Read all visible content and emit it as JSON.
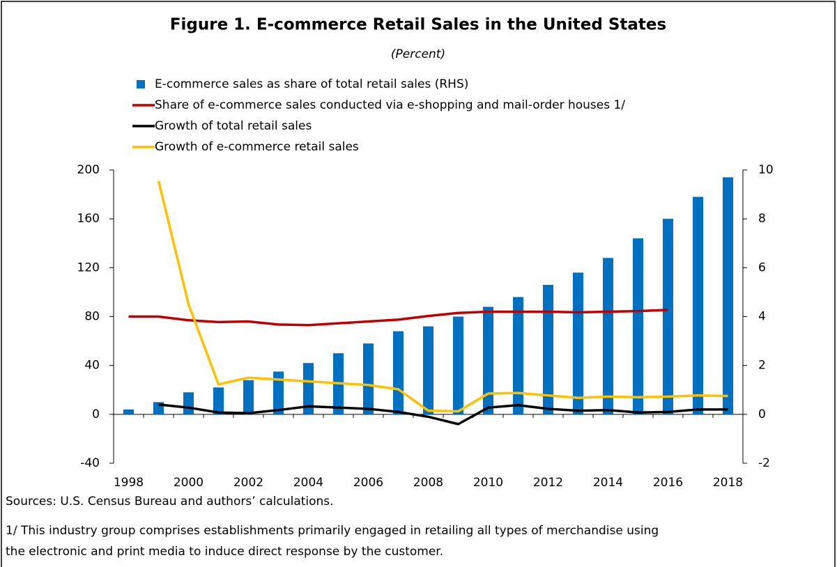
{
  "chart_data": {
    "type": "bar_line",
    "title": "Figure 1. E-commerce Retail Sales in the United States",
    "subtitle": "(Percent)",
    "categories": [
      "1998",
      null,
      "2000",
      null,
      "2002",
      null,
      "2004",
      null,
      "2006",
      null,
      "2008",
      null,
      "2010",
      null,
      "2012",
      null,
      "2014",
      null,
      "2016",
      null,
      "2018"
    ],
    "series": [
      {
        "name": "E-commerce sales as share of total retail sales (RHS)",
        "kind": "bar",
        "axis": "y2",
        "color": "#0070c0",
        "values": [
          0.2,
          0.5,
          0.9,
          1.1,
          1.4,
          1.75,
          2.1,
          2.5,
          2.9,
          3.4,
          3.6,
          4.0,
          4.4,
          4.8,
          5.3,
          5.8,
          6.4,
          7.2,
          8.0,
          8.9,
          9.7
        ]
      },
      {
        "name": "Share of e-commerce sales conducted via e-shopping and mail-order houses 1/",
        "kind": "line",
        "color": "#c00000",
        "values": [
          80,
          80,
          77,
          75.5,
          76,
          73.5,
          73,
          74.5,
          76,
          77.5,
          80.5,
          83,
          84,
          84,
          84,
          83.5,
          84,
          84.5,
          85.5,
          null,
          null
        ]
      },
      {
        "name": "Growth of total retail sales",
        "kind": "line",
        "color": "#000000",
        "values": [
          null,
          8,
          5.5,
          1.5,
          1,
          3.5,
          6.5,
          5.5,
          4.5,
          2,
          -2,
          -8,
          5.5,
          7.5,
          4.5,
          3,
          3.5,
          1.5,
          2,
          4,
          4
        ]
      },
      {
        "name": "Growth of e-commerce retail sales",
        "kind": "line",
        "color": "#ffc000",
        "values": [
          null,
          191,
          90,
          24.5,
          30,
          28.5,
          27,
          25.5,
          24,
          20.5,
          3,
          2.5,
          17,
          17.5,
          15.5,
          13.5,
          14.5,
          14,
          14.5,
          15.5,
          15
        ]
      }
    ],
    "ylim": [
      -40,
      200
    ],
    "yticks": [
      -40,
      0,
      40,
      80,
      120,
      160,
      200
    ],
    "y2lim": [
      -2,
      10
    ],
    "y2ticks": [
      -2,
      0,
      2,
      4,
      6,
      8,
      10
    ],
    "notes": [
      "Sources: U.S. Census Bureau and authors’ calculations.",
      "1/ This industry group comprises establishments primarily engaged in retailing all types of merchandise using",
      "the electronic and print media to induce direct response by the customer."
    ]
  }
}
